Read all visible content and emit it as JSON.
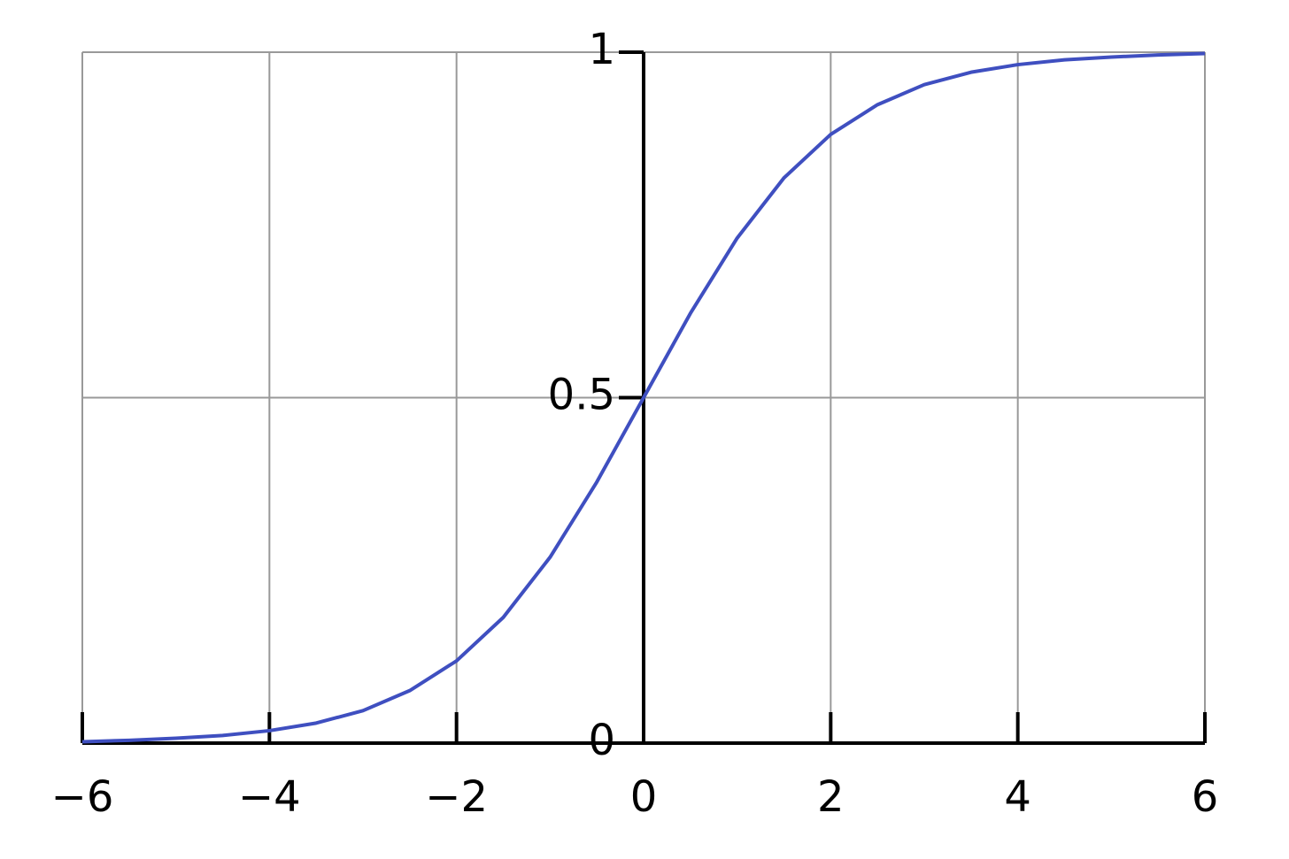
{
  "chart_data": {
    "type": "line",
    "x": [
      -6,
      -5.5,
      -5,
      -4.5,
      -4,
      -3.5,
      -3,
      -2.5,
      -2,
      -1.5,
      -1,
      -0.5,
      0,
      0.5,
      1,
      1.5,
      2,
      2.5,
      3,
      3.5,
      4,
      4.5,
      5,
      5.5,
      6
    ],
    "values": [
      0.002,
      0.004,
      0.007,
      0.011,
      0.018,
      0.029,
      0.047,
      0.076,
      0.119,
      0.182,
      0.269,
      0.378,
      0.5,
      0.622,
      0.731,
      0.818,
      0.881,
      0.924,
      0.953,
      0.971,
      0.982,
      0.989,
      0.993,
      0.996,
      0.998
    ],
    "color": "#3f4fc0",
    "xlim": [
      -6,
      6
    ],
    "ylim": [
      0,
      1
    ],
    "xticks": [
      {
        "value": -6,
        "label": "−6"
      },
      {
        "value": -4,
        "label": "−4"
      },
      {
        "value": -2,
        "label": "−2"
      },
      0,
      2,
      4,
      6
    ],
    "yticks": [
      0,
      0.5,
      1
    ],
    "grid": true
  }
}
